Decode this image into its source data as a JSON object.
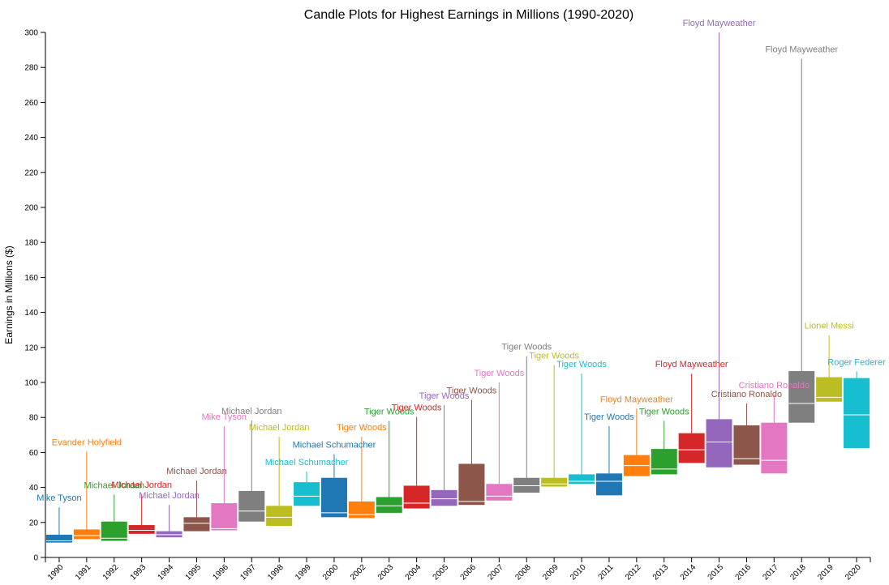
{
  "chart_data": {
    "type": "candlestick",
    "title": "Candle Plots for Highest Earnings in Millions (1990-2020)",
    "ylabel": "Earnings in Millions ($)",
    "xlabel": "",
    "ylim": [
      0,
      300
    ],
    "yticks": [
      0,
      20,
      40,
      60,
      80,
      100,
      120,
      140,
      160,
      180,
      200,
      220,
      240,
      260,
      280,
      300
    ],
    "grid": false,
    "colors": [
      "#1f77b4",
      "#ff7f0e",
      "#2ca02c",
      "#d62728",
      "#9467bd",
      "#8c564b",
      "#e377c2",
      "#7f7f7f",
      "#bcbd22",
      "#17becf"
    ],
    "candles": [
      {
        "year": "1990",
        "low": 8,
        "q1": 8.5,
        "median": 9.5,
        "q3": 13,
        "high": 28.6,
        "top_earner": "Mike Tyson"
      },
      {
        "year": "1991",
        "low": 10,
        "q1": 10.5,
        "median": 12.5,
        "q3": 16,
        "high": 60.5,
        "top_earner": "Evander Holyfield"
      },
      {
        "year": "1992",
        "low": 9,
        "q1": 9.5,
        "median": 11,
        "q3": 20.5,
        "high": 35.9,
        "top_earner": "Michael Jordan"
      },
      {
        "year": "1993",
        "low": 13.5,
        "q1": 13.5,
        "median": 15.5,
        "q3": 18.5,
        "high": 36,
        "top_earner": "Michael Jordan"
      },
      {
        "year": "1994",
        "low": 11.5,
        "q1": 11.5,
        "median": 13,
        "q3": 15,
        "high": 30,
        "top_earner": "Michael Jordan"
      },
      {
        "year": "1995",
        "low": 15,
        "q1": 15,
        "median": 19.5,
        "q3": 23,
        "high": 43.9,
        "top_earner": "Michael Jordan"
      },
      {
        "year": "1996",
        "low": 15.5,
        "q1": 15.5,
        "median": 16.5,
        "q3": 31,
        "high": 75,
        "top_earner": "Mike Tyson"
      },
      {
        "year": "1997",
        "low": 20.5,
        "q1": 20.5,
        "median": 26.5,
        "q3": 38,
        "high": 78.3,
        "top_earner": "Michael Jordan"
      },
      {
        "year": "1998",
        "low": 18,
        "q1": 18,
        "median": 23,
        "q3": 29.5,
        "high": 69,
        "top_earner": "Michael Jordan"
      },
      {
        "year": "1999",
        "low": 29.5,
        "q1": 29.5,
        "median": 35,
        "q3": 43,
        "high": 49,
        "top_earner": "Michael Schumacher"
      },
      {
        "year": "2000",
        "low": 23,
        "q1": 23,
        "median": 25.5,
        "q3": 45.5,
        "high": 59,
        "top_earner": "Michael Schumacher"
      },
      {
        "year": "2002",
        "low": 22.5,
        "q1": 22.5,
        "median": 24.5,
        "q3": 32,
        "high": 69,
        "top_earner": "Tiger Woods"
      },
      {
        "year": "2003",
        "low": 25.5,
        "q1": 25.5,
        "median": 29.5,
        "q3": 34.5,
        "high": 78,
        "top_earner": "Tiger Woods"
      },
      {
        "year": "2004",
        "low": 28,
        "q1": 28,
        "median": 31,
        "q3": 41,
        "high": 80.3,
        "top_earner": "Tiger Woods"
      },
      {
        "year": "2005",
        "low": 29.5,
        "q1": 29.5,
        "median": 33.5,
        "q3": 38.5,
        "high": 87,
        "top_earner": "Tiger Woods"
      },
      {
        "year": "2006",
        "low": 30,
        "q1": 30,
        "median": 32,
        "q3": 53.5,
        "high": 90,
        "top_earner": "Tiger Woods"
      },
      {
        "year": "2007",
        "low": 32.5,
        "q1": 32.5,
        "median": 35,
        "q3": 42,
        "high": 100,
        "top_earner": "Tiger Woods"
      },
      {
        "year": "2008",
        "low": 37,
        "q1": 37,
        "median": 41,
        "q3": 45.5,
        "high": 115,
        "top_earner": "Tiger Woods"
      },
      {
        "year": "2009",
        "low": 40.5,
        "q1": 40.5,
        "median": 42,
        "q3": 45.5,
        "high": 110,
        "top_earner": "Tiger Woods"
      },
      {
        "year": "2010",
        "low": 42,
        "q1": 42,
        "median": 43.5,
        "q3": 47.5,
        "high": 105,
        "top_earner": "Tiger Woods"
      },
      {
        "year": "2011",
        "low": 35.5,
        "q1": 35.5,
        "median": 43.5,
        "q3": 48,
        "high": 75,
        "top_earner": "Tiger Woods"
      },
      {
        "year": "2012",
        "low": 46.5,
        "q1": 46.5,
        "median": 52.5,
        "q3": 58.5,
        "high": 85,
        "top_earner": "Floyd Mayweather"
      },
      {
        "year": "2013",
        "low": 47.5,
        "q1": 47.5,
        "median": 50.5,
        "q3": 62,
        "high": 78.1,
        "top_earner": "Tiger Woods"
      },
      {
        "year": "2014",
        "low": 54,
        "q1": 54,
        "median": 61.5,
        "q3": 71,
        "high": 105,
        "top_earner": "Floyd Mayweather"
      },
      {
        "year": "2015",
        "low": 51.5,
        "q1": 51.5,
        "median": 66,
        "q3": 79,
        "high": 300,
        "top_earner": "Floyd Mayweather"
      },
      {
        "year": "2016",
        "low": 53,
        "q1": 53,
        "median": 56.5,
        "q3": 75.5,
        "high": 88,
        "top_earner": "Cristiano Ronaldo"
      },
      {
        "year": "2017",
        "low": 48,
        "q1": 48,
        "median": 55.5,
        "q3": 77,
        "high": 93,
        "top_earner": "Cristiano Ronaldo"
      },
      {
        "year": "2018",
        "low": 77,
        "q1": 77,
        "median": 88,
        "q3": 106.5,
        "high": 285,
        "top_earner": "Floyd Mayweather"
      },
      {
        "year": "2019",
        "low": 89,
        "q1": 89,
        "median": 91.5,
        "q3": 103,
        "high": 127,
        "top_earner": "Lionel Messi"
      },
      {
        "year": "2020",
        "low": 62.5,
        "q1": 62.5,
        "median": 81.5,
        "q3": 102.5,
        "high": 106.3,
        "top_earner": "Roger Federer"
      }
    ]
  }
}
